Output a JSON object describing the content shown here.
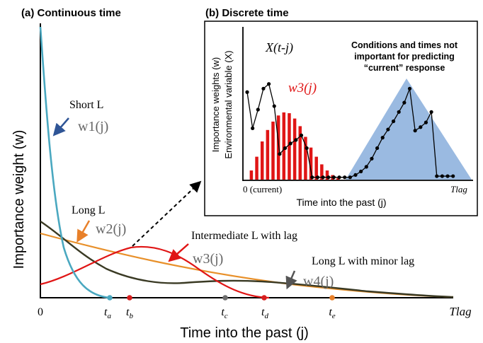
{
  "panel_a": {
    "heading": "(a)  Continuous time",
    "y_axis_label": "Importance weight (w)",
    "x_axis_label": "Time into the past (j)",
    "x_start": "0",
    "x_end": "Tlag",
    "time_marks": [
      {
        "label": "t_a",
        "color": "#4aa8c0"
      },
      {
        "label": "t_b",
        "color": "#d81e1e"
      },
      {
        "label": "t_c",
        "color": "#6d6d6d"
      },
      {
        "label": "t_d",
        "color": "#d81e1e"
      },
      {
        "label": "t_e",
        "color": "#e8802a"
      }
    ],
    "annotations": {
      "short_L": "Short L",
      "w1": "w1(j)",
      "long_L": "Long L",
      "w2": "w2(j)",
      "intermediate": "Intermediate L with lag",
      "w3": "w3(j)",
      "long_minor": "Long L with minor lag",
      "w4": "w4(j)"
    },
    "curve_colors": {
      "w1": "#4aa8c0",
      "w2": "#e8902a",
      "w3": "#e01515",
      "w4": "#3a3a24"
    }
  },
  "panel_b": {
    "heading": "(b)  Discrete time",
    "y_label_line1": "Importance weights (w)",
    "y_label_line2": "Environmental variable (X)",
    "x_label": "Time into the past (j)",
    "x_start": "0 (current)",
    "x_end": "Tlag",
    "series_x_label": "X(t-j)",
    "weights_label": "w3(j)",
    "note": [
      "Conditions and times not",
      "important for predicting",
      "“current” response"
    ],
    "bar_color": "#e01515",
    "shade_color": "#8fb2de",
    "bar_weights": [
      0.0,
      0.12,
      0.3,
      0.5,
      0.65,
      0.76,
      0.84,
      0.88,
      0.87,
      0.8,
      0.7,
      0.56,
      0.42,
      0.3,
      0.2,
      0.12,
      0.06,
      0.02
    ],
    "x_series": [
      0.75,
      0.44,
      0.6,
      0.78,
      0.82,
      0.63,
      0.22,
      0.27,
      0.31,
      0.34,
      0.38,
      0.27,
      0.02,
      0.02,
      0.02,
      0.02,
      0.02,
      0.02,
      0.02,
      0.02,
      0.04,
      0.07,
      0.11,
      0.18,
      0.27,
      0.36,
      0.43,
      0.5,
      0.58,
      0.66,
      0.78,
      0.42,
      0.45,
      0.49,
      0.58,
      0.03,
      0.03,
      0.03,
      0.03
    ]
  }
}
